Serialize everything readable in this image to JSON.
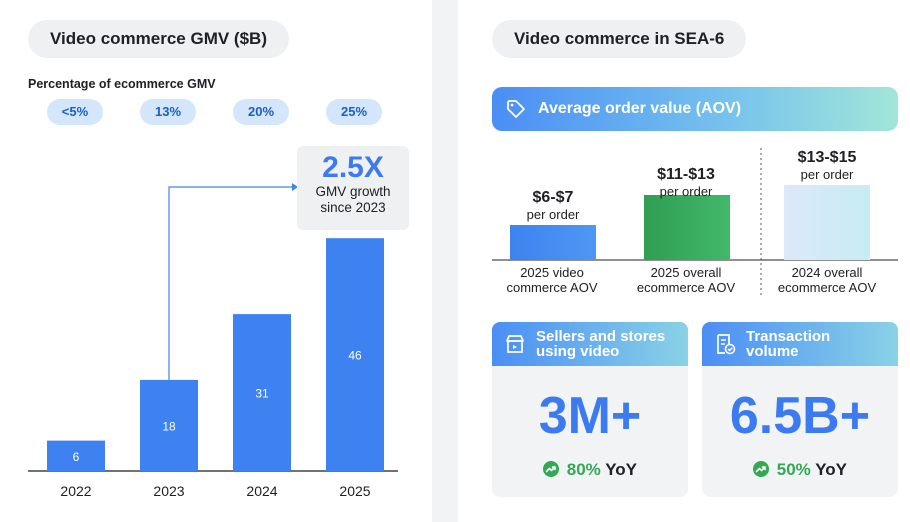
{
  "left": {
    "title": "Video commerce GMV ($B)",
    "subtitle": "Percentage of ecommerce GMV",
    "percentages": [
      "<5%",
      "13%",
      "20%",
      "25%"
    ],
    "growth": {
      "value": "2.5X",
      "line1": "GMV growth",
      "line2": "since 2023"
    }
  },
  "right": {
    "title": "Video commerce in SEA-6",
    "aov_banner": "Average order value (AOV)",
    "cards": [
      {
        "title_line1": "Sellers and stores",
        "title_line2": "using video",
        "value": "3M+",
        "yoy_pct": "80%",
        "yoy_label": "YoY"
      },
      {
        "title_line1": "Transaction",
        "title_line2": "volume",
        "value": "6.5B+",
        "yoy_pct": "50%",
        "yoy_label": "YoY"
      }
    ]
  },
  "chart_data": [
    {
      "type": "bar",
      "title": "Video commerce GMV ($B)",
      "categories": [
        "2022",
        "2023",
        "2024",
        "2025"
      ],
      "values": [
        6,
        18,
        31,
        46
      ],
      "ylim": [
        0,
        50
      ],
      "color": "#3d82f0"
    },
    {
      "type": "bar",
      "title": "Average order value (AOV)",
      "bars": [
        {
          "value_text": "$6-$7",
          "unit": "per order",
          "label_line1": "2025 video",
          "label_line2": "commerce AOV",
          "range": [
            6,
            7
          ],
          "color": "#3d82f0"
        },
        {
          "value_text": "$11-$13",
          "unit": "per order",
          "label_line1": "2025 overall",
          "label_line2": "ecommerce AOV",
          "range": [
            11,
            13
          ],
          "color": "#34a853"
        },
        {
          "value_text": "$13-$15",
          "unit": "per order",
          "label_line1": "2024 overall",
          "label_line2": "ecommerce AOV",
          "range": [
            13,
            15
          ],
          "color": "#cfe8f8"
        }
      ]
    }
  ]
}
